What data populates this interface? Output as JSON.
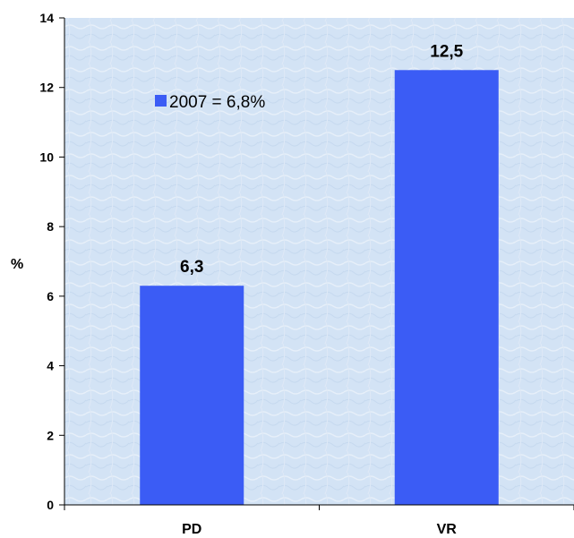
{
  "chart_data": {
    "type": "bar",
    "categories": [
      "PD",
      "VR"
    ],
    "values": [
      6.3,
      12.5
    ],
    "data_labels": [
      "6,3",
      "12,5"
    ],
    "ylabel": "%",
    "xlabel": "",
    "ylim": [
      0,
      14
    ],
    "yticks": [
      0,
      2,
      4,
      6,
      8,
      10,
      12,
      14
    ],
    "grid": false,
    "legend": {
      "placement": "top-left",
      "text": "2007 = 6,8%"
    },
    "colors": {
      "bar": "#3b5cf5",
      "plot_background": "#d3e3f5",
      "axis": "#000000"
    }
  }
}
